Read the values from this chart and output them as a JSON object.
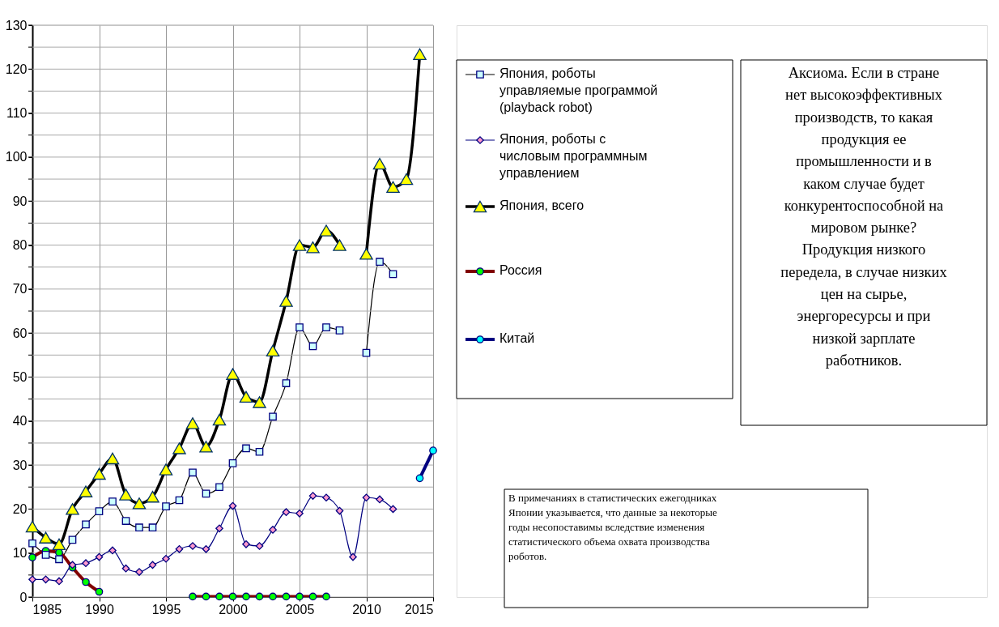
{
  "chart_data": {
    "type": "line",
    "x": [
      1985,
      1986,
      1987,
      1988,
      1989,
      1990,
      1991,
      1992,
      1993,
      1994,
      1995,
      1996,
      1997,
      1998,
      1999,
      2000,
      2001,
      2002,
      2003,
      2004,
      2005,
      2006,
      2007,
      2008,
      2009,
      2010,
      2011,
      2012,
      2013,
      2014,
      2015
    ],
    "series": [
      {
        "name": "Япония, роботы управляемые программой (playback robot)",
        "color": "#000000",
        "marker": "square",
        "values": [
          12.2,
          9.6,
          8.6,
          13,
          16.5,
          19.5,
          21.7,
          17.3,
          15.8,
          15.8,
          20.6,
          22,
          28.3,
          23.5,
          25,
          30.4,
          33.8,
          33,
          41,
          48.6,
          61.3,
          57,
          61.3,
          60.6,
          null,
          55.5,
          76.2,
          73.4,
          null,
          null,
          null
        ]
      },
      {
        "name": "Япония, роботы с числовым программным управлением",
        "color": "#000080",
        "marker": "diamond",
        "values": [
          4,
          4,
          3.6,
          7.3,
          7.7,
          9.1,
          10.6,
          6.5,
          5.7,
          7.3,
          8.7,
          10.9,
          11.6,
          10.9,
          15.6,
          20.7,
          12,
          11.6,
          15.3,
          19.3,
          19,
          23,
          22.6,
          19.6,
          9.1,
          22.6,
          22.2,
          20,
          null,
          null,
          null
        ]
      },
      {
        "name": "Япония, всего",
        "color": "#000000",
        "marker": "triangle",
        "values": [
          16,
          13.5,
          12,
          20,
          24,
          28,
          31.5,
          23.3,
          21.3,
          22.8,
          29,
          33.8,
          39.5,
          34.2,
          40.3,
          50.7,
          45.5,
          44.3,
          56,
          67.3,
          80,
          79.5,
          83.3,
          80,
          null,
          78,
          98.5,
          93.2,
          95,
          123.4,
          null
        ]
      },
      {
        "name": "Россия",
        "color": "#800000",
        "marker": "circle",
        "values": [
          9,
          10.5,
          10.1,
          6.7,
          3.4,
          1.2,
          null,
          null,
          null,
          null,
          null,
          null,
          0.1,
          0.1,
          0.1,
          0.1,
          0.1,
          0.1,
          0.1,
          0.1,
          0.1,
          0.1,
          0.1,
          null,
          null,
          null,
          null,
          null,
          null,
          null,
          null
        ]
      },
      {
        "name": "Китай",
        "color": "#000080",
        "marker": "circle",
        "values": [
          null,
          null,
          null,
          null,
          null,
          null,
          null,
          null,
          null,
          null,
          null,
          null,
          null,
          null,
          null,
          null,
          null,
          null,
          null,
          null,
          null,
          null,
          null,
          null,
          null,
          null,
          null,
          null,
          null,
          27,
          33.3
        ]
      }
    ],
    "xlim": [
      1985,
      2015
    ],
    "xticks": [
      1985,
      1990,
      1995,
      2000,
      2005,
      2010,
      2015
    ],
    "ylim": [
      0,
      130
    ],
    "yticks": [
      0,
      {
        "value": 5,
        "label": null
      },
      10,
      {
        "value": 15,
        "label": null
      },
      20,
      {
        "value": 25,
        "label": null
      },
      30,
      {
        "value": 35,
        "label": null
      },
      40,
      {
        "value": 45,
        "label": null
      },
      50,
      {
        "value": 55,
        "label": null
      },
      60,
      {
        "value": 65,
        "label": null
      },
      70,
      {
        "value": 75,
        "label": null
      },
      80,
      {
        "value": 85,
        "label": null
      },
      90,
      {
        "value": 95,
        "label": null
      },
      100,
      {
        "value": 105,
        "label": null
      },
      110,
      {
        "value": 115,
        "label": null
      },
      120,
      {
        "value": 125,
        "label": null
      },
      130
    ],
    "grid": true,
    "legend": "right",
    "line_style": "solid",
    "annotations": [
      "Аксиома. Если в стране\nнет высокоэффективных\nпроизводств, то какая\nпродукция ее\nпромышленности  и в\nкаком случае будет\nконкурентоспособной на\nмировом рынке?\nПродукция низкого\nпередела, в случае низких\nцен на сырье,\nэнергоресурсы и при\nнизкой зарплате\nработников.",
      "В примечаниях в статистических ежегодниках\nЯпонии указывается, что данные за некоторые\nгоды несопоставимы вследствие изменения\nстатистического объема охвата производства\nроботов."
    ]
  }
}
